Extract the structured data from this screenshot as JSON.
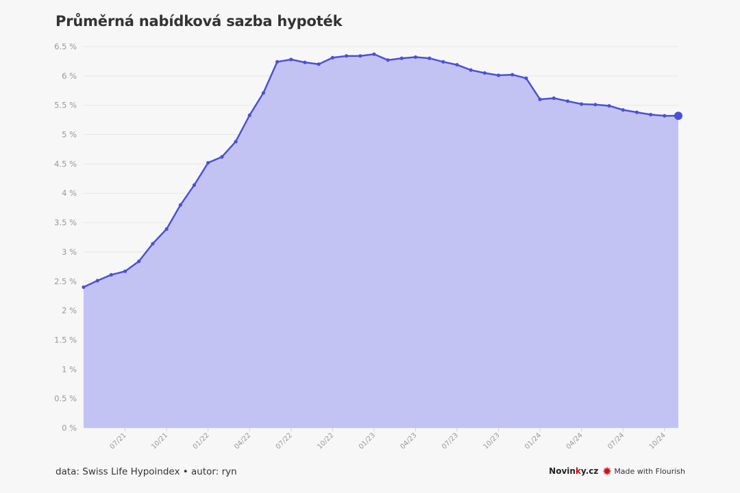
{
  "title": "Průměrná nabídková sazba hypoték",
  "footer": {
    "source": "data: Swiss Life Hypoindex • autor: ryn",
    "brand_main": "Novin",
    "brand_red": "k",
    "brand_tail": "y.cz",
    "flourish": "Made with Flourish"
  },
  "colors": {
    "line": "#4b4fdc",
    "area": "#c2c3f2",
    "background": "#f7f7f7",
    "grid": "#e6e6e6"
  },
  "icons": {
    "flourish": "flourish-star-icon"
  },
  "chart_data": {
    "type": "area",
    "title": "Průměrná nabídková sazba hypoték",
    "xlabel": "",
    "ylabel": "",
    "ylim": [
      0,
      6.5
    ],
    "y_ticks": [
      0,
      0.5,
      1,
      1.5,
      2,
      2.5,
      3,
      3.5,
      4,
      4.5,
      5,
      5.5,
      6,
      6.5
    ],
    "y_tick_labels": [
      "0 %",
      "0.5 %",
      "1 %",
      "1.5 %",
      "2 %",
      "2.5 %",
      "3 %",
      "3.5 %",
      "4 %",
      "4.5 %",
      "5 %",
      "5.5 %",
      "6 %",
      "6.5 %"
    ],
    "x_tick_labels": [
      "07/21",
      "10/21",
      "01/22",
      "04/22",
      "07/22",
      "10/22",
      "01/23",
      "04/23",
      "07/23",
      "10/23",
      "01/24",
      "04/24",
      "07/24",
      "10/24"
    ],
    "x_range": [
      "04/21",
      "11/24"
    ],
    "grid": "horizontal",
    "legend": "none",
    "series": [
      {
        "x": [
          "04/21",
          "05/21",
          "06/21",
          "07/21",
          "08/21",
          "09/21",
          "10/21",
          "11/21",
          "12/21",
          "01/22",
          "02/22",
          "03/22",
          "04/22",
          "05/22",
          "06/22",
          "07/22",
          "08/22",
          "09/22",
          "10/22",
          "11/22",
          "12/22",
          "01/23",
          "02/23",
          "03/23",
          "04/23",
          "05/23",
          "06/23",
          "07/23",
          "08/23",
          "09/23",
          "10/23",
          "11/23",
          "12/23",
          "01/24",
          "02/24",
          "03/24",
          "04/24",
          "05/24",
          "06/24",
          "07/24",
          "08/24",
          "09/24",
          "10/24",
          "11/24"
        ],
        "values": [
          2.4,
          2.51,
          2.61,
          2.67,
          2.84,
          3.14,
          3.39,
          3.8,
          4.14,
          4.52,
          4.62,
          4.88,
          5.33,
          5.71,
          6.24,
          6.28,
          6.23,
          6.2,
          6.31,
          6.34,
          6.34,
          6.37,
          6.27,
          6.3,
          6.32,
          6.3,
          6.24,
          6.19,
          6.1,
          6.05,
          6.01,
          6.02,
          5.96,
          5.6,
          5.62,
          5.57,
          5.52,
          5.51,
          5.49,
          5.42,
          5.38,
          5.34,
          5.32,
          5.32
        ]
      }
    ]
  }
}
